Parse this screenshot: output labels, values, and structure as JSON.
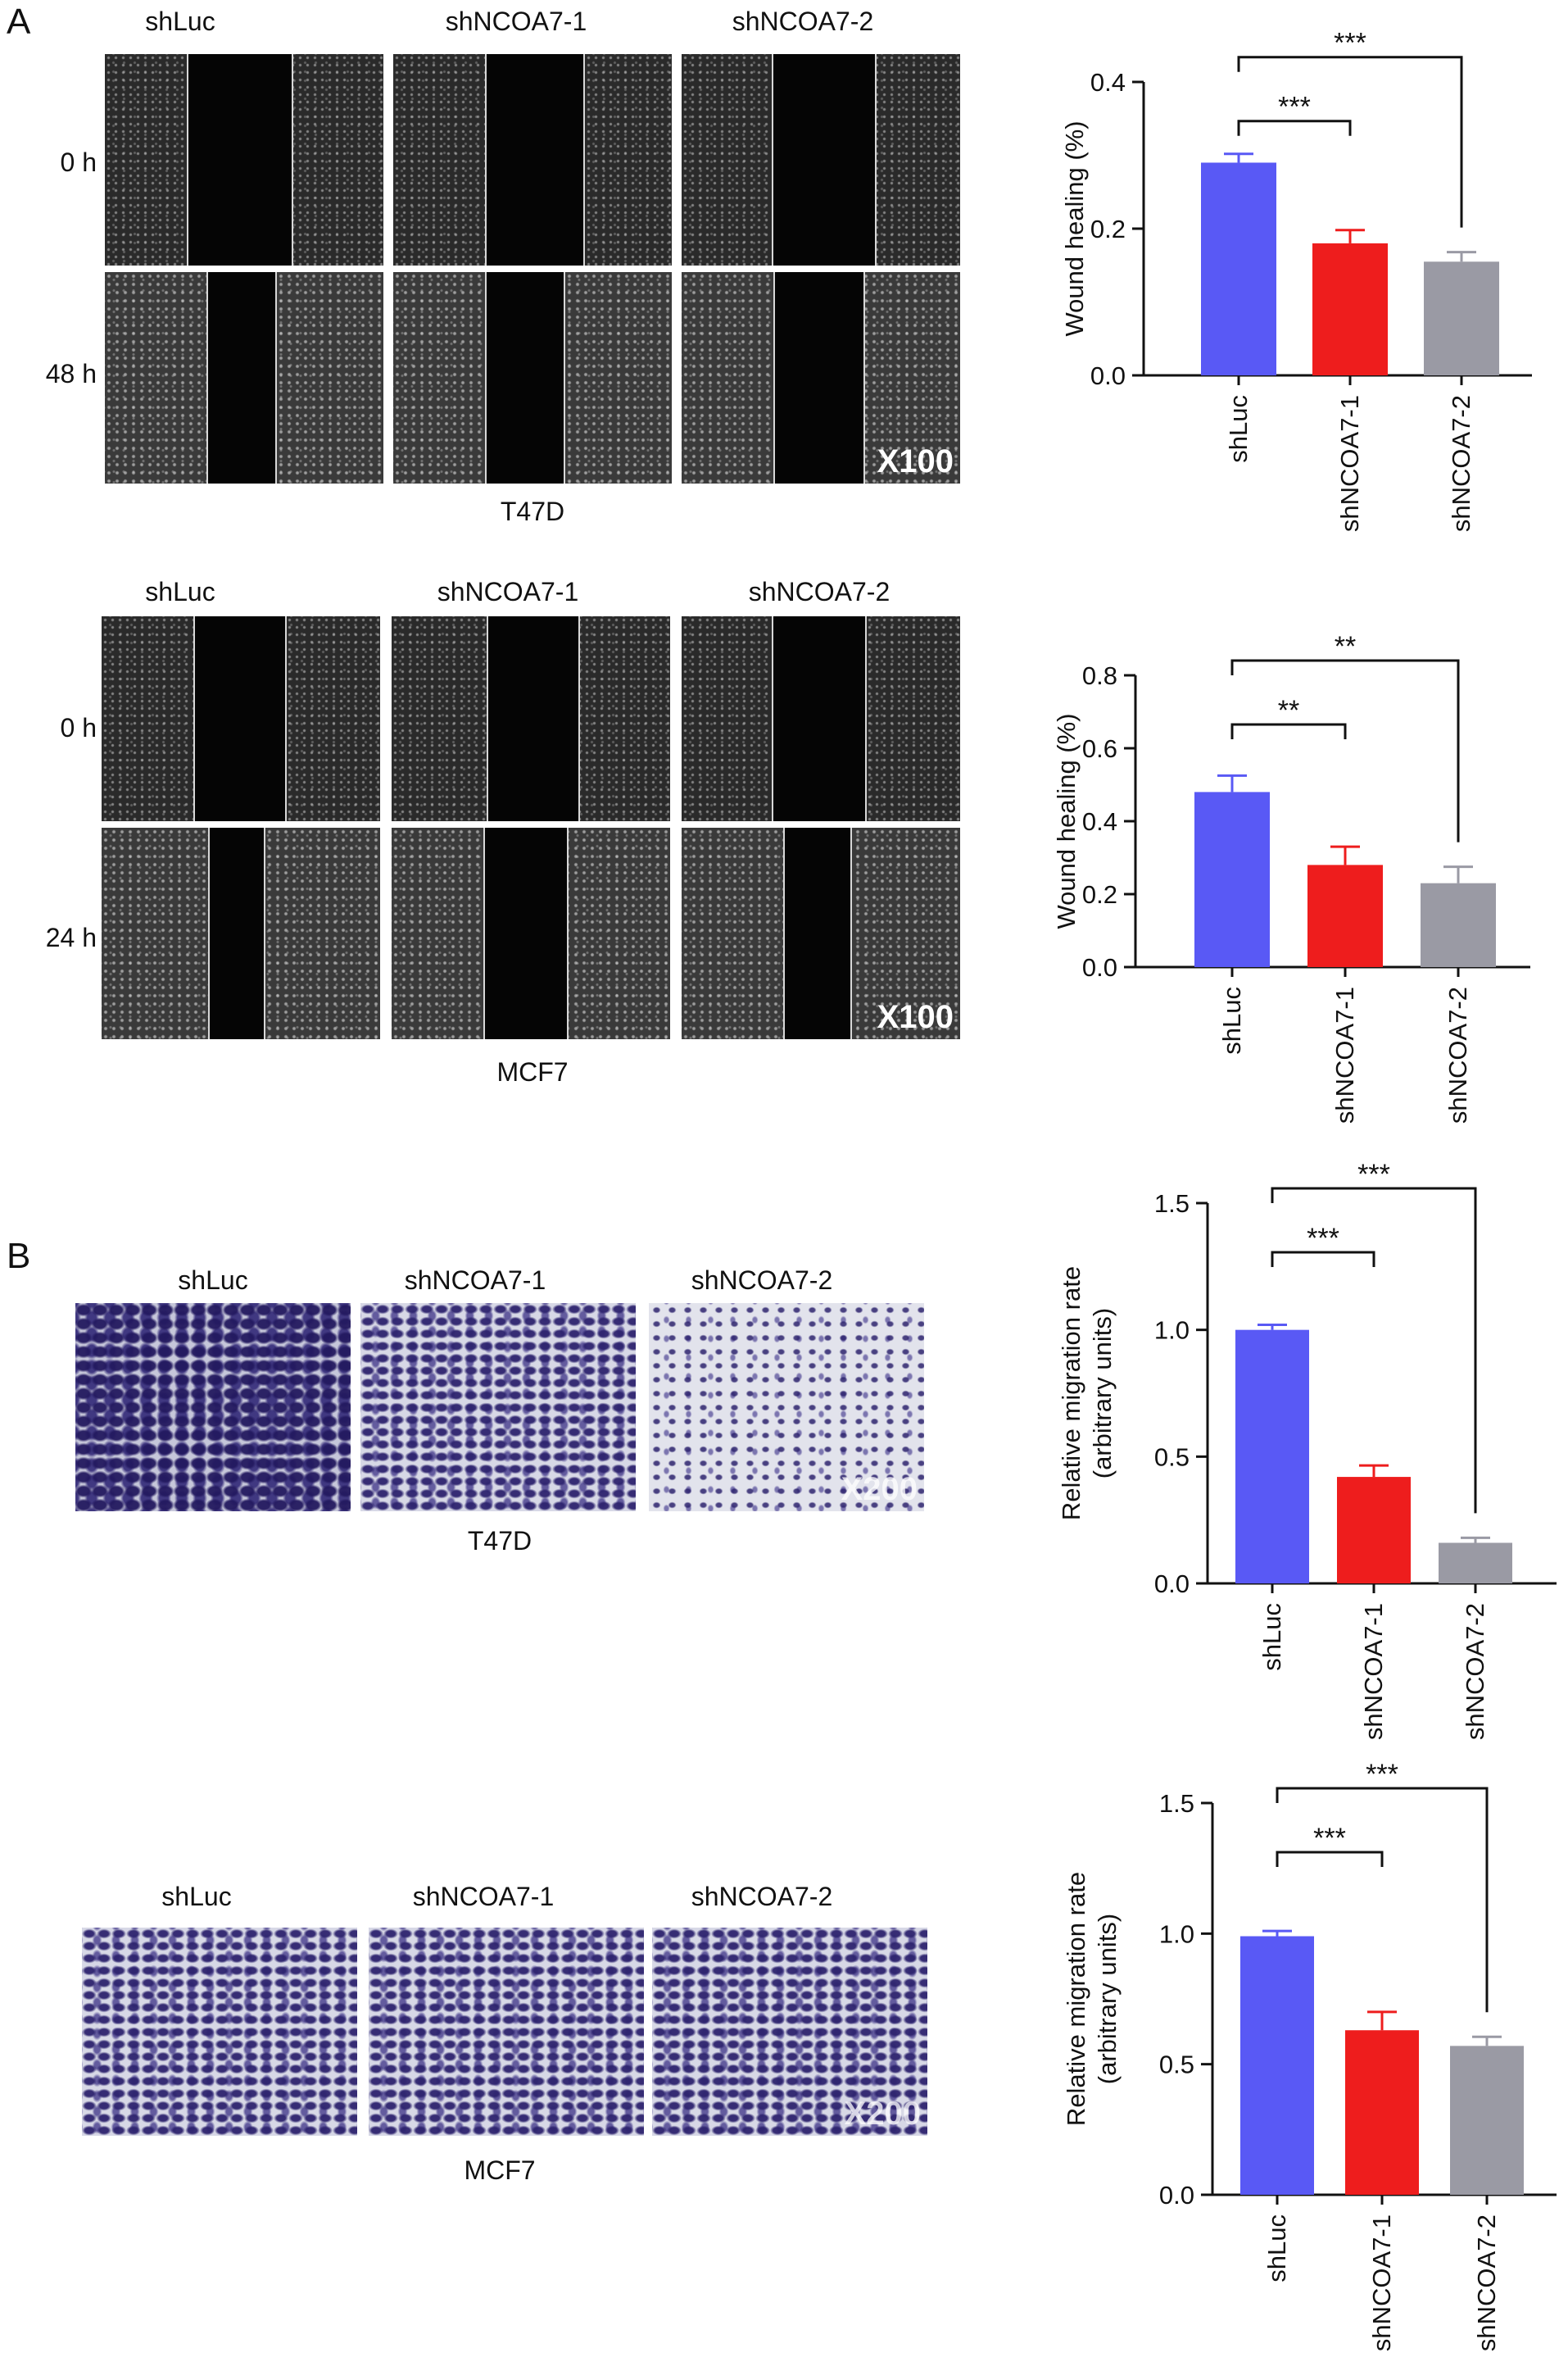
{
  "panel_letters": [
    "A",
    "B"
  ],
  "sample_labels": [
    "shLuc",
    "shNCOA7-1",
    "shNCOA7-2"
  ],
  "wound_t47d": {
    "rows": [
      "0 h",
      "48 h"
    ],
    "caption": "T47D",
    "magnification": "X100"
  },
  "wound_mcf7": {
    "rows": [
      "0 h",
      "24 h"
    ],
    "caption": "MCF7",
    "magnification": "X100"
  },
  "transwell_t47d": {
    "caption": "T47D",
    "magnification": "X200"
  },
  "transwell_mcf7": {
    "caption": "MCF7",
    "magnification": "X200"
  },
  "colors": {
    "shLuc": "#5959f5",
    "shNCOA7-1": "#ee1d1d",
    "shNCOA7-2": "#9a9aa4"
  },
  "chart_data": [
    {
      "type": "bar",
      "categories": [
        "shLuc",
        "shNCOA7-1",
        "shNCOA7-2"
      ],
      "values": [
        0.29,
        0.18,
        0.155
      ],
      "errors": [
        0.012,
        0.018,
        0.013
      ],
      "ylabel": "Wound healing (%)",
      "ylim": [
        0,
        0.4
      ],
      "yticks": [
        "0.0",
        "0.2",
        "0.4"
      ],
      "significance": [
        {
          "pair": [
            0,
            1
          ],
          "label": "***"
        },
        {
          "pair": [
            0,
            2
          ],
          "label": "***"
        }
      ]
    },
    {
      "type": "bar",
      "categories": [
        "shLuc",
        "shNCOA7-1",
        "shNCOA7-2"
      ],
      "values": [
        0.48,
        0.28,
        0.23
      ],
      "errors": [
        0.045,
        0.05,
        0.045
      ],
      "ylabel": "Wound healing (%)",
      "ylim": [
        0,
        0.8
      ],
      "yticks": [
        "0.0",
        "0.2",
        "0.4",
        "0.6",
        "0.8"
      ],
      "significance": [
        {
          "pair": [
            0,
            1
          ],
          "label": "**"
        },
        {
          "pair": [
            0,
            2
          ],
          "label": "**"
        }
      ]
    },
    {
      "type": "bar",
      "categories": [
        "shLuc",
        "shNCOA7-1",
        "shNCOA7-2"
      ],
      "values": [
        1.0,
        0.42,
        0.16
      ],
      "errors": [
        0.02,
        0.045,
        0.02
      ],
      "ylabel": "Relative migration rate",
      "ylabel2": "(arbitrary units)",
      "ylim": [
        0,
        1.5
      ],
      "yticks": [
        "0.0",
        "0.5",
        "1.0",
        "1.5"
      ],
      "significance": [
        {
          "pair": [
            0,
            1
          ],
          "label": "***"
        },
        {
          "pair": [
            0,
            2
          ],
          "label": "***"
        }
      ]
    },
    {
      "type": "bar",
      "categories": [
        "shLuc",
        "shNCOA7-1",
        "shNCOA7-2"
      ],
      "values": [
        0.99,
        0.63,
        0.57
      ],
      "errors": [
        0.02,
        0.07,
        0.035
      ],
      "ylabel": "Relative migration rate",
      "ylabel2": "(arbitrary units)",
      "ylim": [
        0,
        1.5
      ],
      "yticks": [
        "0.0",
        "0.5",
        "1.0",
        "1.5"
      ],
      "significance": [
        {
          "pair": [
            0,
            1
          ],
          "label": "***"
        },
        {
          "pair": [
            0,
            2
          ],
          "label": "***"
        }
      ]
    }
  ]
}
